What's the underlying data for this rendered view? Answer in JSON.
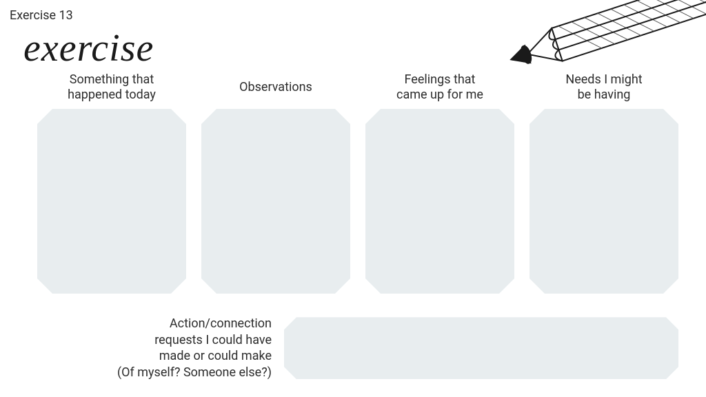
{
  "page_label": "Exercise 13",
  "cursive_title": "exercise",
  "columns": [
    {
      "header": "Something that\nhappened today"
    },
    {
      "header": "Observations"
    },
    {
      "header": "Feelings that\ncame up for me"
    },
    {
      "header": "Needs I might\nbe having"
    }
  ],
  "bottom_label": "Action/connection\nrequests I could have\nmade or could make\n(Of myself? Someone else?)",
  "box_background": "#e8edef",
  "page_background": "#ffffff",
  "text_color": "#2c2c2c",
  "header_fontsize": 18,
  "cursive_fontsize": 56,
  "pencil": {
    "stroke": "#1a1a1a",
    "fill": "#ffffff",
    "hatch_fill": "#3a3a3a"
  }
}
